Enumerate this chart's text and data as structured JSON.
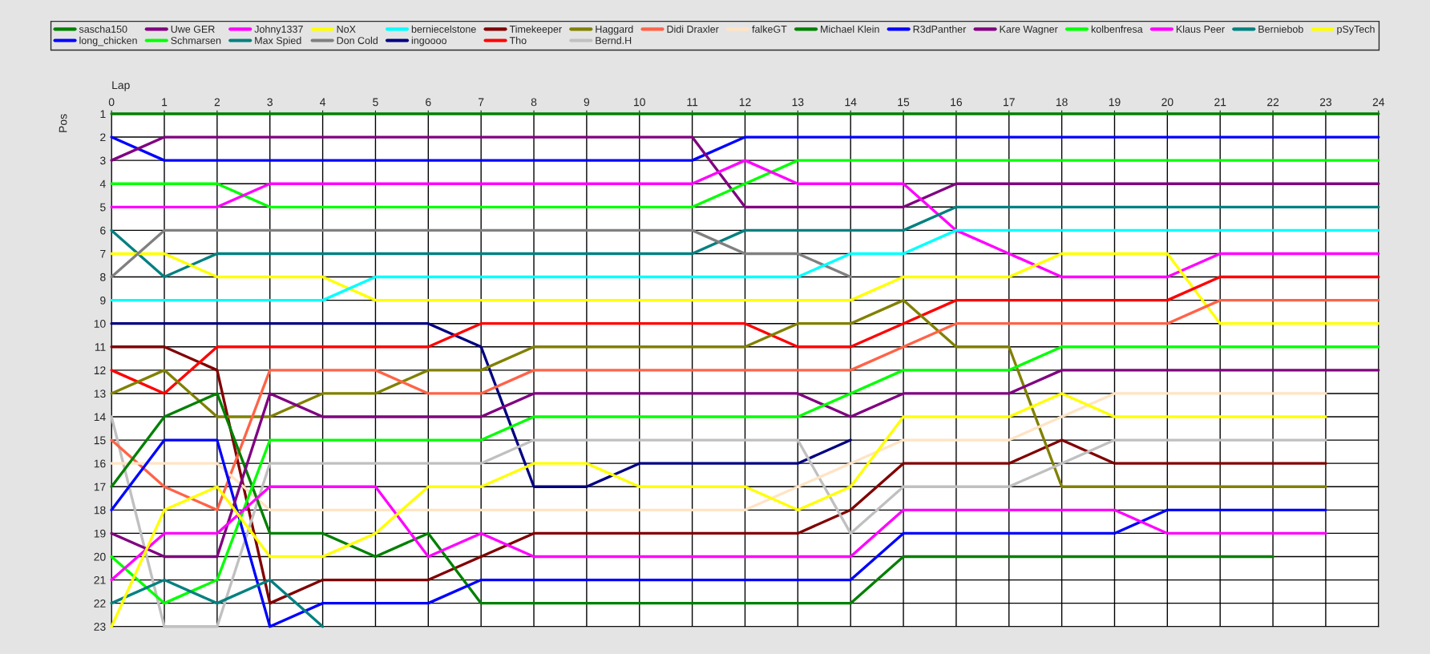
{
  "chart_data": {
    "type": "line",
    "xlabel": "Lap",
    "ylabel": "Pos",
    "x": [
      0,
      1,
      2,
      3,
      4,
      5,
      6,
      7,
      8,
      9,
      10,
      11,
      12,
      13,
      14,
      15,
      16,
      17,
      18,
      19,
      20,
      21,
      22,
      23,
      24
    ],
    "xlim": [
      0,
      24
    ],
    "ylim": [
      23,
      1
    ],
    "xticks": [
      0,
      1,
      2,
      3,
      4,
      5,
      6,
      7,
      8,
      9,
      10,
      11,
      12,
      13,
      14,
      15,
      16,
      17,
      18,
      19,
      20,
      21,
      22,
      23,
      24
    ],
    "yticks": [
      1,
      2,
      3,
      4,
      5,
      6,
      7,
      8,
      9,
      10,
      11,
      12,
      13,
      14,
      15,
      16,
      17,
      18,
      19,
      20,
      21,
      22,
      23
    ],
    "grid": true,
    "legend": "top",
    "series": [
      {
        "name": "sascha150",
        "color": "#008000",
        "values": [
          1,
          1,
          1,
          1,
          1,
          1,
          1,
          1,
          1,
          1,
          1,
          1,
          1,
          1,
          1,
          1,
          1,
          1,
          1,
          1,
          1,
          1,
          1,
          1,
          1
        ]
      },
      {
        "name": "long_chicken",
        "color": "#0000ff",
        "values": [
          2,
          3,
          3,
          3,
          3,
          3,
          3,
          3,
          3,
          3,
          3,
          3,
          2,
          2,
          2,
          2,
          2,
          2,
          2,
          2,
          2,
          2,
          2,
          2,
          2
        ]
      },
      {
        "name": "Uwe GER",
        "color": "#800080",
        "values": [
          3,
          2,
          2,
          2,
          2,
          2,
          2,
          2,
          2,
          2,
          2,
          2,
          5,
          5,
          5,
          5,
          4,
          4,
          4,
          4,
          4,
          4,
          4,
          4,
          4
        ]
      },
      {
        "name": "Schmarsen",
        "color": "#00ff00",
        "values": [
          4,
          4,
          4,
          5,
          5,
          5,
          5,
          5,
          5,
          5,
          5,
          5,
          4,
          3,
          3,
          3,
          3,
          3,
          3,
          3,
          3,
          3,
          3,
          3,
          3
        ]
      },
      {
        "name": "Johny1337",
        "color": "#ff00ff",
        "values": [
          5,
          5,
          5,
          4,
          4,
          4,
          4,
          4,
          4,
          4,
          4,
          4,
          3,
          4,
          4,
          4,
          6,
          7,
          8,
          8,
          8,
          7,
          7,
          7,
          7
        ]
      },
      {
        "name": "Max Spied",
        "color": "#008080",
        "values": [
          6,
          8,
          7,
          7,
          7,
          7,
          7,
          7,
          7,
          7,
          7,
          7,
          6,
          6,
          6,
          6,
          5,
          5,
          5,
          5,
          5,
          5,
          5,
          5,
          5
        ]
      },
      {
        "name": "NoX",
        "color": "#ffff00",
        "values": [
          7,
          7,
          8,
          8,
          8,
          9,
          9,
          9,
          9,
          9,
          9,
          9,
          9,
          9,
          9,
          8,
          8,
          8,
          7,
          7,
          7,
          10,
          10,
          10,
          10
        ]
      },
      {
        "name": "Don Cold",
        "color": "#808080",
        "values": [
          8,
          6,
          6,
          6,
          6,
          6,
          6,
          6,
          6,
          6,
          6,
          6,
          7,
          7,
          8,
          null,
          null,
          null,
          null,
          null,
          null,
          null,
          null,
          null,
          null
        ]
      },
      {
        "name": "berniecelstone",
        "color": "#00ffff",
        "values": [
          9,
          9,
          9,
          9,
          9,
          8,
          8,
          8,
          8,
          8,
          8,
          8,
          8,
          8,
          7,
          7,
          6,
          6,
          6,
          6,
          6,
          6,
          6,
          6,
          6
        ]
      },
      {
        "name": "ingoooo",
        "color": "#000080",
        "values": [
          10,
          10,
          10,
          10,
          10,
          10,
          10,
          11,
          17,
          17,
          16,
          16,
          16,
          16,
          15,
          null,
          null,
          null,
          null,
          null,
          null,
          null,
          null,
          null,
          null
        ]
      },
      {
        "name": "Timekeeper",
        "color": "#800000",
        "values": [
          11,
          11,
          12,
          22,
          21,
          21,
          21,
          20,
          19,
          19,
          19,
          19,
          19,
          19,
          18,
          16,
          16,
          16,
          15,
          16,
          16,
          16,
          16,
          16,
          null
        ]
      },
      {
        "name": "Tho",
        "color": "#ff0000",
        "values": [
          12,
          13,
          11,
          11,
          11,
          11,
          11,
          10,
          10,
          10,
          10,
          10,
          10,
          11,
          11,
          10,
          9,
          9,
          9,
          9,
          9,
          8,
          8,
          8,
          8
        ]
      },
      {
        "name": "Haggard",
        "color": "#808000",
        "values": [
          13,
          12,
          14,
          14,
          13,
          13,
          12,
          12,
          11,
          11,
          11,
          11,
          11,
          10,
          10,
          9,
          11,
          11,
          17,
          17,
          17,
          17,
          17,
          17,
          null
        ]
      },
      {
        "name": "Bernd.H",
        "color": "#c0c0c0",
        "values": [
          14,
          23,
          23,
          16,
          16,
          16,
          16,
          16,
          15,
          15,
          15,
          15,
          15,
          15,
          19,
          17,
          17,
          17,
          16,
          15,
          15,
          15,
          15,
          15,
          null
        ]
      },
      {
        "name": "Didi Draxler",
        "color": "#ff6347",
        "values": [
          15,
          17,
          18,
          12,
          12,
          12,
          13,
          13,
          12,
          12,
          12,
          12,
          12,
          12,
          12,
          11,
          10,
          10,
          10,
          10,
          10,
          9,
          9,
          9,
          9
        ]
      },
      {
        "name": "falkeGT",
        "color": "#ffe4c4",
        "values": [
          16,
          16,
          16,
          18,
          18,
          18,
          18,
          18,
          18,
          18,
          18,
          18,
          18,
          17,
          16,
          15,
          15,
          15,
          14,
          13,
          13,
          13,
          13,
          13,
          null
        ]
      },
      {
        "name": "Michael Klein",
        "color": "#008000",
        "values": [
          17,
          14,
          13,
          19,
          19,
          20,
          19,
          22,
          22,
          22,
          22,
          22,
          22,
          22,
          22,
          20,
          20,
          20,
          20,
          20,
          20,
          20,
          20,
          null,
          null
        ]
      },
      {
        "name": "R3dPanther",
        "color": "#0000ff",
        "values": [
          18,
          15,
          15,
          23,
          22,
          22,
          22,
          21,
          21,
          21,
          21,
          21,
          21,
          21,
          21,
          19,
          19,
          19,
          19,
          19,
          18,
          18,
          18,
          18,
          null
        ]
      },
      {
        "name": "Kare Wagner",
        "color": "#800080",
        "values": [
          19,
          20,
          20,
          13,
          14,
          14,
          14,
          14,
          13,
          13,
          13,
          13,
          13,
          13,
          14,
          13,
          13,
          13,
          12,
          12,
          12,
          12,
          12,
          12,
          12
        ]
      },
      {
        "name": "kolbenfresa",
        "color": "#00ff00",
        "values": [
          20,
          22,
          21,
          15,
          15,
          15,
          15,
          15,
          14,
          14,
          14,
          14,
          14,
          14,
          13,
          12,
          12,
          12,
          11,
          11,
          11,
          11,
          11,
          11,
          11
        ]
      },
      {
        "name": "Klaus Peer",
        "color": "#ff00ff",
        "values": [
          21,
          19,
          19,
          17,
          17,
          17,
          20,
          19,
          20,
          20,
          20,
          20,
          20,
          20,
          20,
          18,
          18,
          18,
          18,
          18,
          19,
          19,
          19,
          19,
          null
        ]
      },
      {
        "name": "Berniebob",
        "color": "#008080",
        "values": [
          22,
          21,
          22,
          21,
          23,
          null,
          null,
          null,
          null,
          null,
          null,
          null,
          null,
          null,
          null,
          null,
          null,
          null,
          null,
          null,
          null,
          null,
          null,
          null,
          null
        ]
      },
      {
        "name": "pSyTech",
        "color": "#ffff00",
        "values": [
          23,
          18,
          17,
          20,
          20,
          19,
          17,
          17,
          16,
          16,
          17,
          17,
          17,
          18,
          17,
          14,
          14,
          14,
          13,
          14,
          14,
          14,
          14,
          14,
          null
        ]
      }
    ]
  }
}
